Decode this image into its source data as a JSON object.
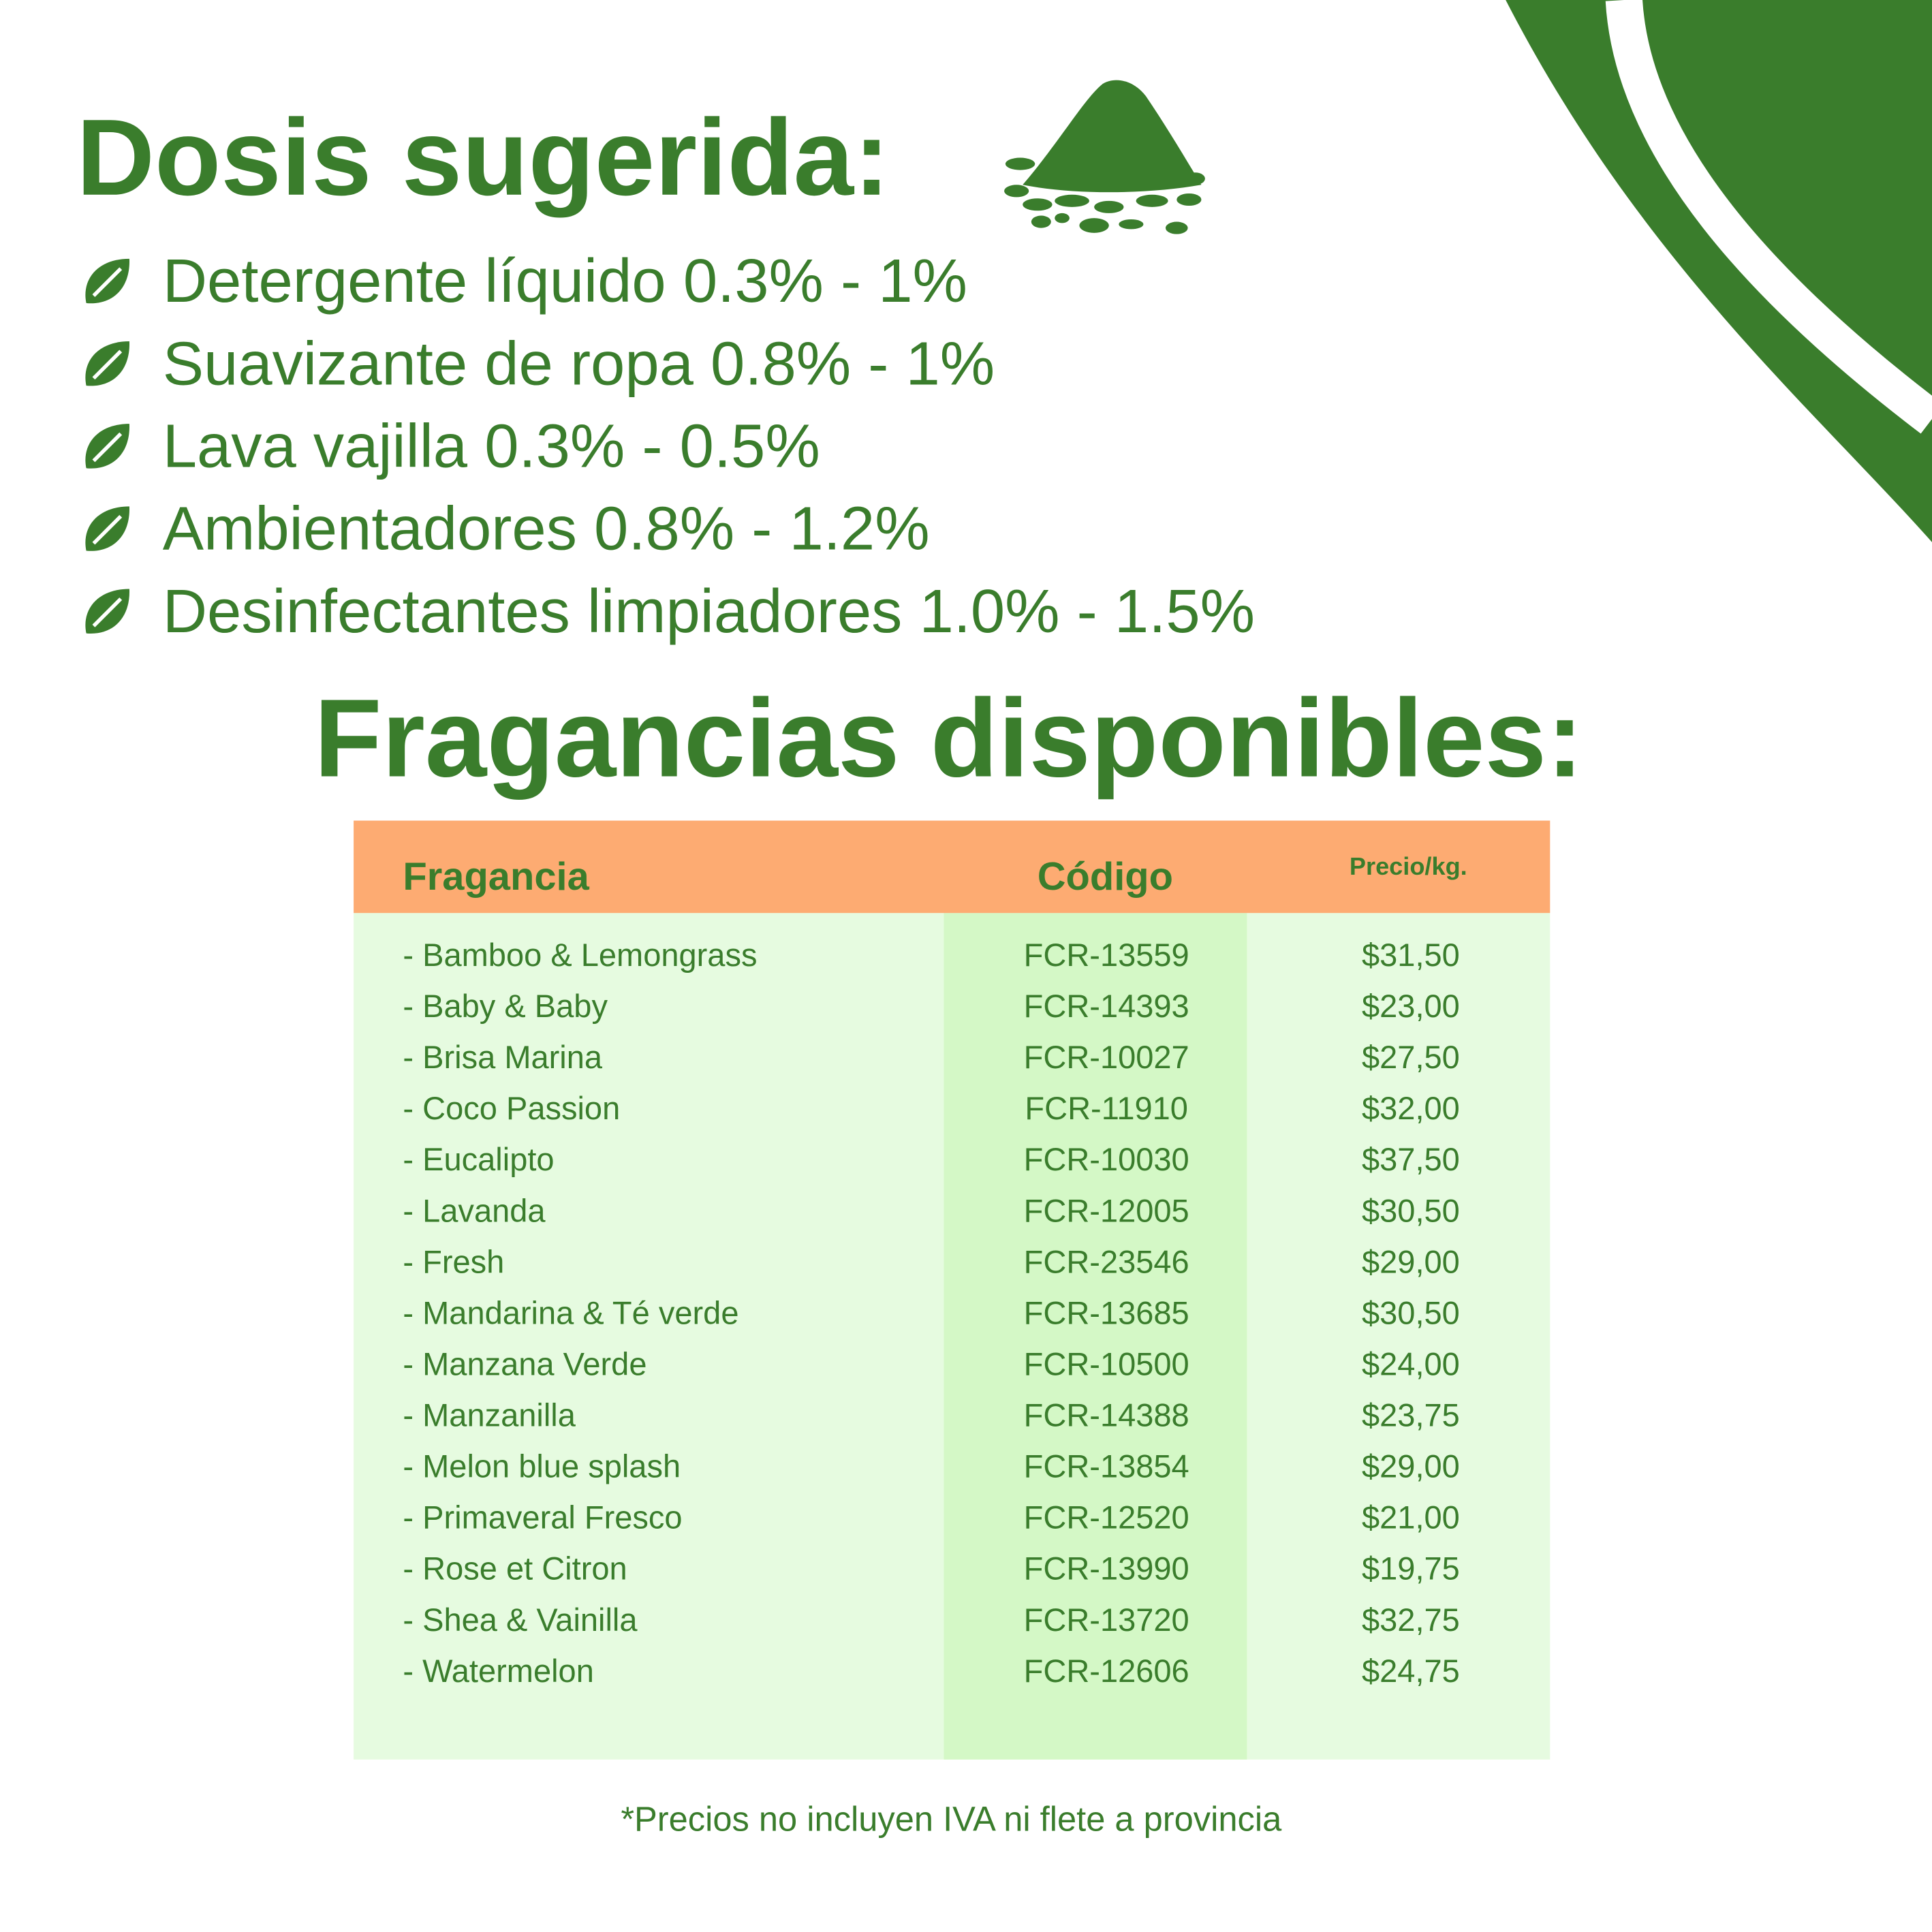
{
  "header": {
    "title": "Dosis sugerida:"
  },
  "dosage": [
    "Detergente líquido 0.3% - 1%",
    "Suavizante de ropa  0.8% - 1%",
    "Lava vajilla 0.3% - 0.5%",
    "Ambientadores 0.8% - 1.2%",
    "Desinfectantes limpiadores 1.0% - 1.5%"
  ],
  "section_title": "Fragancias disponibles:",
  "table": {
    "columns": [
      "Fragancia",
      "Código",
      "Precio/kg."
    ],
    "rows": [
      [
        "- Bamboo & Lemongrass",
        "FCR-13559",
        "$31,50"
      ],
      [
        "- Baby & Baby",
        "FCR-14393",
        "$23,00"
      ],
      [
        "- Brisa Marina",
        "FCR-10027",
        "$27,50"
      ],
      [
        "- Coco Passion",
        "FCR-11910",
        "$32,00"
      ],
      [
        "- Eucalipto",
        "FCR-10030",
        "$37,50"
      ],
      [
        "- Lavanda",
        "FCR-12005",
        "$30,50"
      ],
      [
        "- Fresh",
        "FCR-23546",
        "$29,00"
      ],
      [
        "- Mandarina & Té verde",
        "FCR-13685",
        "$30,50"
      ],
      [
        "- Manzana Verde",
        "FCR-10500",
        "$24,00"
      ],
      [
        "- Manzanilla",
        "FCR-14388",
        "$23,75"
      ],
      [
        "- Melon blue splash",
        "FCR-13854",
        "$29,00"
      ],
      [
        "- Primaveral Fresco",
        "FCR-12520",
        "$21,00"
      ],
      [
        "- Rose et Citron",
        "FCR-13990",
        "$19,75"
      ],
      [
        "- Shea & Vainilla",
        "FCR-13720",
        "$32,75"
      ],
      [
        "- Watermelon",
        "FCR-12606",
        "$24,75"
      ]
    ]
  },
  "footnote": "*Precios no incluyen IVA ni flete a provincia"
}
